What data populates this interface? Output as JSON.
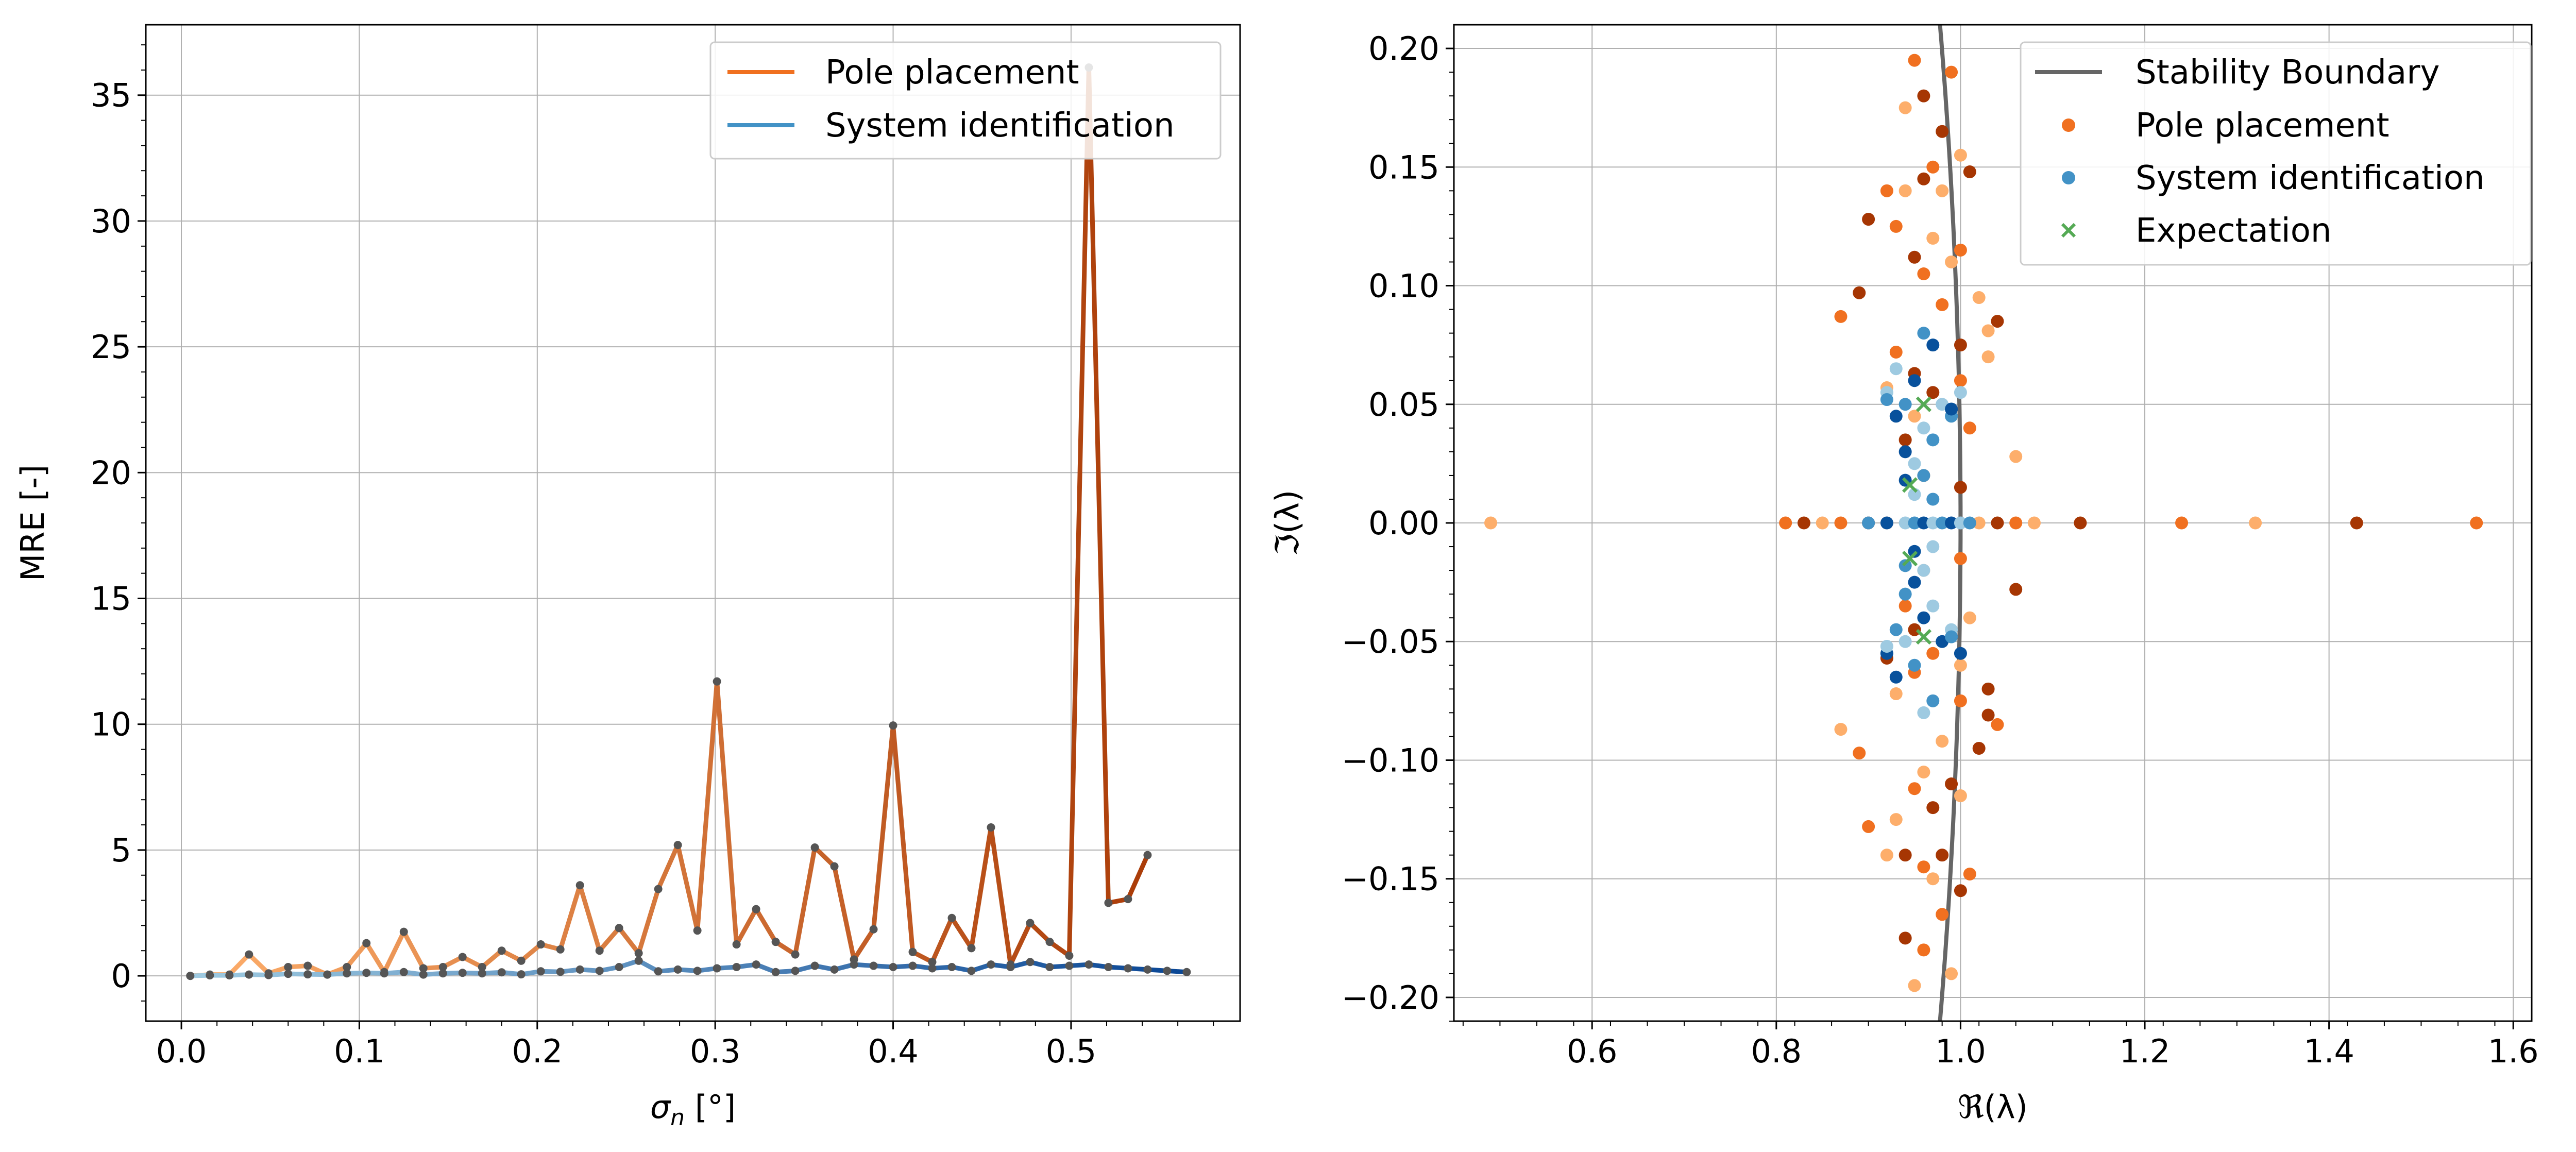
{
  "chart_data": [
    {
      "type": "line",
      "xlabel": "σn [°]",
      "xlabel_main": "σ",
      "xlabel_sub": "n",
      "xlabel_unit": " [°]",
      "ylabel": "MRE [-]",
      "xlim": [
        -0.02,
        0.595
      ],
      "ylim": [
        -1.8,
        37.8
      ],
      "xticks": [
        0.0,
        0.1,
        0.2,
        0.3,
        0.4,
        0.5
      ],
      "xtick_labels": [
        "0.0",
        "0.1",
        "0.2",
        "0.3",
        "0.4",
        "0.5"
      ],
      "yticks": [
        0,
        5,
        10,
        15,
        20,
        25,
        30,
        35
      ],
      "ytick_labels": [
        "0",
        "5",
        "10",
        "15",
        "20",
        "25",
        "30",
        "35"
      ],
      "grid": true,
      "legend_position": "top-right",
      "colors": {
        "pole_start": "#fdae6b",
        "pole_end": "#a63603",
        "sysid_start": "#9ecae1",
        "sysid_end": "#084594",
        "marker": "#555555"
      },
      "x": [
        0.005,
        0.016,
        0.027,
        0.038,
        0.049,
        0.06,
        0.071,
        0.082,
        0.093,
        0.104,
        0.114,
        0.125,
        0.136,
        0.147,
        0.158,
        0.169,
        0.18,
        0.191,
        0.202,
        0.213,
        0.224,
        0.235,
        0.246,
        0.257,
        0.268,
        0.279,
        0.29,
        0.301,
        0.312,
        0.323,
        0.334,
        0.345,
        0.356,
        0.367,
        0.378,
        0.389,
        0.4,
        0.411,
        0.422,
        0.433,
        0.444,
        0.455,
        0.466,
        0.477,
        0.488,
        0.499,
        0.51,
        0.521,
        0.532,
        0.543,
        0.554,
        0.565
      ],
      "series": [
        {
          "name": "Pole placement",
          "values": [
            0.0,
            0.05,
            0.05,
            0.85,
            0.1,
            0.35,
            0.4,
            0.05,
            0.35,
            1.3,
            0.15,
            1.75,
            0.3,
            0.35,
            0.75,
            0.35,
            1.0,
            0.6,
            1.25,
            1.05,
            3.6,
            1.0,
            1.9,
            0.9,
            3.45,
            5.2,
            1.8,
            11.7,
            1.25,
            2.65,
            1.35,
            0.85,
            5.1,
            4.35,
            0.65,
            1.85,
            9.95,
            0.95,
            0.55,
            2.3,
            1.1,
            5.9,
            0.45,
            2.1,
            1.35,
            0.8,
            36.1,
            2.9,
            3.05,
            4.8,
            null,
            null
          ]
        },
        {
          "name": "System identification",
          "values": [
            0.0,
            0.02,
            0.02,
            0.05,
            0.03,
            0.08,
            0.06,
            0.05,
            0.1,
            0.12,
            0.1,
            0.15,
            0.05,
            0.1,
            0.12,
            0.1,
            0.14,
            0.06,
            0.18,
            0.16,
            0.25,
            0.2,
            0.35,
            0.6,
            0.18,
            0.25,
            0.2,
            0.3,
            0.35,
            0.45,
            0.15,
            0.2,
            0.4,
            0.25,
            0.45,
            0.4,
            0.35,
            0.4,
            0.3,
            0.35,
            0.2,
            0.45,
            0.35,
            0.55,
            0.35,
            0.4,
            0.45,
            0.35,
            0.3,
            0.25,
            0.2,
            0.15
          ]
        }
      ]
    },
    {
      "type": "scatter",
      "xlabel": "ℜ(λ)",
      "ylabel": "ℑ(λ)",
      "xlim": [
        0.45,
        1.62
      ],
      "ylim": [
        -0.21,
        0.21
      ],
      "xticks": [
        0.6,
        0.8,
        1.0,
        1.2,
        1.4,
        1.6
      ],
      "xtick_labels": [
        "0.6",
        "0.8",
        "1.0",
        "1.2",
        "1.4",
        "1.6"
      ],
      "yticks": [
        -0.2,
        -0.15,
        -0.1,
        -0.05,
        0.0,
        0.05,
        0.1,
        0.15,
        0.2
      ],
      "ytick_labels": [
        "−0.20",
        "−0.15",
        "−0.10",
        "−0.05",
        "0.00",
        "0.05",
        "0.10",
        "0.15",
        "0.20"
      ],
      "grid": true,
      "legend_position": "top-right",
      "colors": {
        "boundary": "#666666",
        "pole": "#f07020",
        "pole_dark": "#a63603",
        "pole_light": "#fdae6b",
        "sysid": "#4292c6",
        "sysid_dark": "#08519c",
        "sysid_light": "#9ecae1",
        "expectation": "#55aa55"
      },
      "legend": [
        "Stability Boundary",
        "Pole placement",
        "System identification",
        "Expectation"
      ],
      "stability_boundary": {
        "name": "Stability Boundary"
      },
      "pole_placement": {
        "name": "Pole placement",
        "points": [
          [
            0.49,
            0
          ],
          [
            1.56,
            0
          ],
          [
            1.43,
            0
          ],
          [
            1.32,
            0
          ],
          [
            1.24,
            0
          ],
          [
            1.13,
            0
          ],
          [
            1.08,
            0
          ],
          [
            1.06,
            0
          ],
          [
            1.04,
            0
          ],
          [
            1.02,
            0
          ],
          [
            0.81,
            0
          ],
          [
            0.83,
            0
          ],
          [
            0.85,
            0
          ],
          [
            0.87,
            0
          ],
          [
            0.9,
            0
          ],
          [
            0.92,
            0
          ],
          [
            0.95,
            0.195
          ],
          [
            0.96,
            0.18
          ],
          [
            0.94,
            0.175
          ],
          [
            0.99,
            0.19
          ],
          [
            0.98,
            0.165
          ],
          [
            1.0,
            0.155
          ],
          [
            0.97,
            0.15
          ],
          [
            1.01,
            0.148
          ],
          [
            0.94,
            0.14
          ],
          [
            0.92,
            0.14
          ],
          [
            0.96,
            0.145
          ],
          [
            0.98,
            0.14
          ],
          [
            0.93,
            0.125
          ],
          [
            0.9,
            0.128
          ],
          [
            0.97,
            0.12
          ],
          [
            1.0,
            0.115
          ],
          [
            0.95,
            0.112
          ],
          [
            0.99,
            0.11
          ],
          [
            0.96,
            0.105
          ],
          [
            0.89,
            0.097
          ],
          [
            1.02,
            0.095
          ],
          [
            0.87,
            0.087
          ],
          [
            1.04,
            0.085
          ],
          [
            1.03,
            0.081
          ],
          [
            0.98,
            0.092
          ],
          [
            1.0,
            0.075
          ],
          [
            1.03,
            0.07
          ],
          [
            0.93,
            0.072
          ],
          [
            0.95,
            0.063
          ],
          [
            0.92,
            0.057
          ],
          [
            1.0,
            0.06
          ],
          [
            0.97,
            0.055
          ],
          [
            0.95,
            0.045
          ],
          [
            1.01,
            0.04
          ],
          [
            0.94,
            0.035
          ],
          [
            1.06,
            0.028
          ],
          [
            0.96,
            0.02
          ],
          [
            1.0,
            0.015
          ],
          [
            0.95,
            -0.195
          ],
          [
            0.96,
            -0.18
          ],
          [
            0.94,
            -0.175
          ],
          [
            0.99,
            -0.19
          ],
          [
            0.98,
            -0.165
          ],
          [
            1.0,
            -0.155
          ],
          [
            0.97,
            -0.15
          ],
          [
            1.01,
            -0.148
          ],
          [
            0.94,
            -0.14
          ],
          [
            0.92,
            -0.14
          ],
          [
            0.96,
            -0.145
          ],
          [
            0.98,
            -0.14
          ],
          [
            0.93,
            -0.125
          ],
          [
            0.9,
            -0.128
          ],
          [
            0.97,
            -0.12
          ],
          [
            1.0,
            -0.115
          ],
          [
            0.95,
            -0.112
          ],
          [
            0.99,
            -0.11
          ],
          [
            0.96,
            -0.105
          ],
          [
            0.89,
            -0.097
          ],
          [
            1.02,
            -0.095
          ],
          [
            0.87,
            -0.087
          ],
          [
            1.04,
            -0.085
          ],
          [
            1.03,
            -0.081
          ],
          [
            0.98,
            -0.092
          ],
          [
            1.0,
            -0.075
          ],
          [
            1.03,
            -0.07
          ],
          [
            0.93,
            -0.072
          ],
          [
            0.95,
            -0.063
          ],
          [
            0.92,
            -0.057
          ],
          [
            1.0,
            -0.06
          ],
          [
            0.97,
            -0.055
          ],
          [
            0.95,
            -0.045
          ],
          [
            1.01,
            -0.04
          ],
          [
            0.94,
            -0.035
          ],
          [
            1.06,
            -0.028
          ],
          [
            0.96,
            -0.02
          ],
          [
            1.0,
            -0.015
          ]
        ]
      },
      "system_identification": {
        "name": "System identification",
        "points": [
          [
            0.93,
            0.065
          ],
          [
            0.96,
            0.08
          ],
          [
            0.97,
            0.075
          ],
          [
            0.92,
            0.055
          ],
          [
            0.94,
            0.05
          ],
          [
            0.95,
            0.06
          ],
          [
            0.98,
            0.05
          ],
          [
            0.99,
            0.045
          ],
          [
            0.93,
            0.045
          ],
          [
            0.96,
            0.04
          ],
          [
            0.97,
            0.035
          ],
          [
            0.94,
            0.03
          ],
          [
            0.95,
            0.025
          ],
          [
            0.96,
            0.02
          ],
          [
            0.94,
            0.018
          ],
          [
            0.95,
            0.012
          ],
          [
            0.97,
            0.01
          ],
          [
            0.99,
            0.048
          ],
          [
            1.0,
            0.055
          ],
          [
            0.92,
            0.052
          ],
          [
            0.93,
            -0.065
          ],
          [
            0.96,
            -0.08
          ],
          [
            0.97,
            -0.075
          ],
          [
            0.92,
            -0.055
          ],
          [
            0.94,
            -0.05
          ],
          [
            0.95,
            -0.06
          ],
          [
            0.98,
            -0.05
          ],
          [
            0.99,
            -0.045
          ],
          [
            0.93,
            -0.045
          ],
          [
            0.96,
            -0.04
          ],
          [
            0.97,
            -0.035
          ],
          [
            0.94,
            -0.03
          ],
          [
            0.95,
            -0.025
          ],
          [
            0.96,
            -0.02
          ],
          [
            0.94,
            -0.018
          ],
          [
            0.95,
            -0.012
          ],
          [
            0.97,
            -0.01
          ],
          [
            0.99,
            -0.048
          ],
          [
            1.0,
            -0.055
          ],
          [
            0.92,
            -0.052
          ],
          [
            0.9,
            0
          ],
          [
            0.92,
            0
          ],
          [
            0.94,
            0
          ],
          [
            0.95,
            0
          ],
          [
            0.96,
            0
          ],
          [
            0.97,
            0
          ],
          [
            0.98,
            0
          ],
          [
            0.99,
            0
          ],
          [
            1.0,
            0
          ],
          [
            1.01,
            0
          ]
        ]
      },
      "expectation": {
        "name": "Expectation",
        "points": [
          [
            0.96,
            0.05
          ],
          [
            0.945,
            0.016
          ],
          [
            0.945,
            -0.015
          ],
          [
            0.96,
            -0.048
          ]
        ]
      }
    }
  ]
}
